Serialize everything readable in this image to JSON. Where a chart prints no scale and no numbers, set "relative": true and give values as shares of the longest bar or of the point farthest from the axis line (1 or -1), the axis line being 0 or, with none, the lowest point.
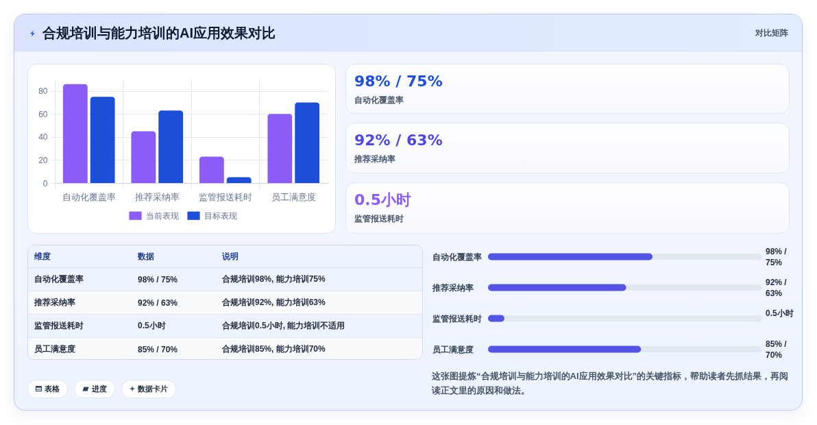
{
  "chart_data": [
    {
      "type": "other",
      "title": "合规培训与能力培训的AI应用效果对比",
      "annotations": [
        "对比矩阵"
      ]
    },
    {
      "type": "bar",
      "categories": [
        "自动化覆盖率",
        "推荐采纳率",
        "监管报送耗时",
        "员工满意度"
      ],
      "series": [
        {
          "name": "当前表现",
          "color": "#8b5cf6",
          "values": [
            86,
            45,
            23,
            60
          ]
        },
        {
          "name": "目标表现",
          "color": "#1d4ed8",
          "values": [
            75,
            63,
            5,
            70
          ]
        }
      ],
      "ylim": [
        0,
        90
      ],
      "yticks": [
        0,
        20,
        40,
        60,
        80
      ],
      "grid": true,
      "legend": "bottom"
    },
    {
      "type": "other",
      "title": "98% / 75%",
      "subtitle": "自动化覆盖率",
      "color": "#1d4ed8"
    },
    {
      "type": "other",
      "title": "92% / 63%",
      "subtitle": "推荐采纳率",
      "color": "#4f46e5"
    },
    {
      "type": "other",
      "title": "0.5小时",
      "subtitle": "监管报送耗时",
      "color": "#8b5cf6"
    },
    {
      "type": "other",
      "categories": [
        "维度",
        "数据",
        "说明"
      ],
      "cell_labels": [
        [
          "自动化覆盖率",
          "98% / 75%",
          "合规培训98%, 能力培训75%"
        ],
        [
          "推荐采纳率",
          "92% / 63%",
          "合规培训92%, 能力培训63%"
        ],
        [
          "监管报送耗时",
          "0.5小时",
          "合规培训0.5小时, 能力培训不适用"
        ],
        [
          "员工满意度",
          "85% / 70%",
          "合规培训85%, 能力培训70%"
        ]
      ]
    },
    {
      "type": "bar",
      "orientation": "horizontal",
      "relative": true,
      "categories": [
        "自动化覆盖率",
        "推荐采纳率",
        "监管报送耗时",
        "员工满意度"
      ],
      "values": [
        1,
        0.84,
        0.1,
        0.93
      ],
      "color": "#5455e7",
      "annotations": [
        "98% / 75%",
        "92% / 63%",
        "0.5小时",
        "85% / 70%"
      ]
    },
    {
      "type": "other",
      "annotations": [
        "表格",
        "进度",
        "数据卡片"
      ]
    },
    {
      "type": "other",
      "annotations": [
        "这张图提炼“合规培训与能力培训的AI应用效果对比”的关键指标，帮助读者先抓结果，再阅读正文里的原因和做法。"
      ]
    }
  ]
}
